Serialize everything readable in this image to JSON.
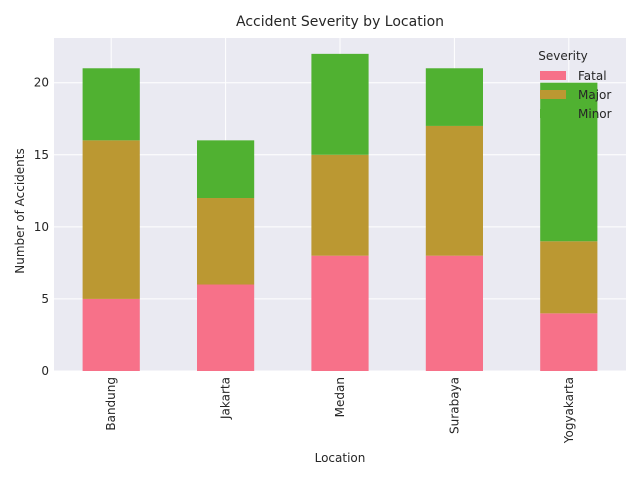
{
  "chart_data": {
    "type": "bar",
    "stacked": true,
    "title": "Accident Severity by Location",
    "xlabel": "Location",
    "ylabel": "Number of Accidents",
    "categories": [
      "Bandung",
      "Jakarta",
      "Medan",
      "Surabaya",
      "Yogyakarta"
    ],
    "series": [
      {
        "name": "Fatal",
        "values": [
          5,
          6,
          8,
          8,
          4
        ],
        "color": "#f77189"
      },
      {
        "name": "Major",
        "values": [
          11,
          6,
          7,
          9,
          5
        ],
        "color": "#bb9832"
      },
      {
        "name": "Minor",
        "values": [
          5,
          4,
          7,
          4,
          11
        ],
        "color": "#50b131"
      }
    ],
    "ylim": [
      0,
      23.1
    ],
    "yticks": [
      0,
      5,
      10,
      15,
      20
    ],
    "grid": true,
    "legend": {
      "title": "Severity",
      "position": "top-right"
    },
    "background_color": "#eaeaf2"
  }
}
